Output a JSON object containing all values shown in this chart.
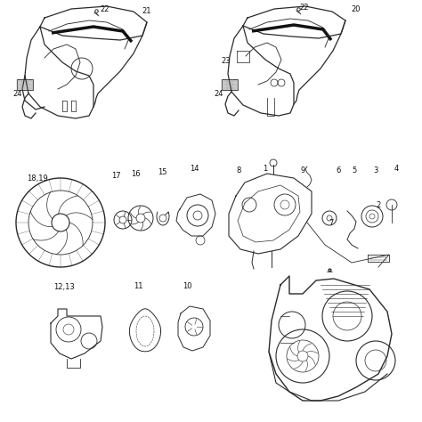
{
  "bg_color": "#ffffff",
  "fig_width": 4.74,
  "fig_height": 4.74,
  "dpi": 100,
  "image_data": ""
}
